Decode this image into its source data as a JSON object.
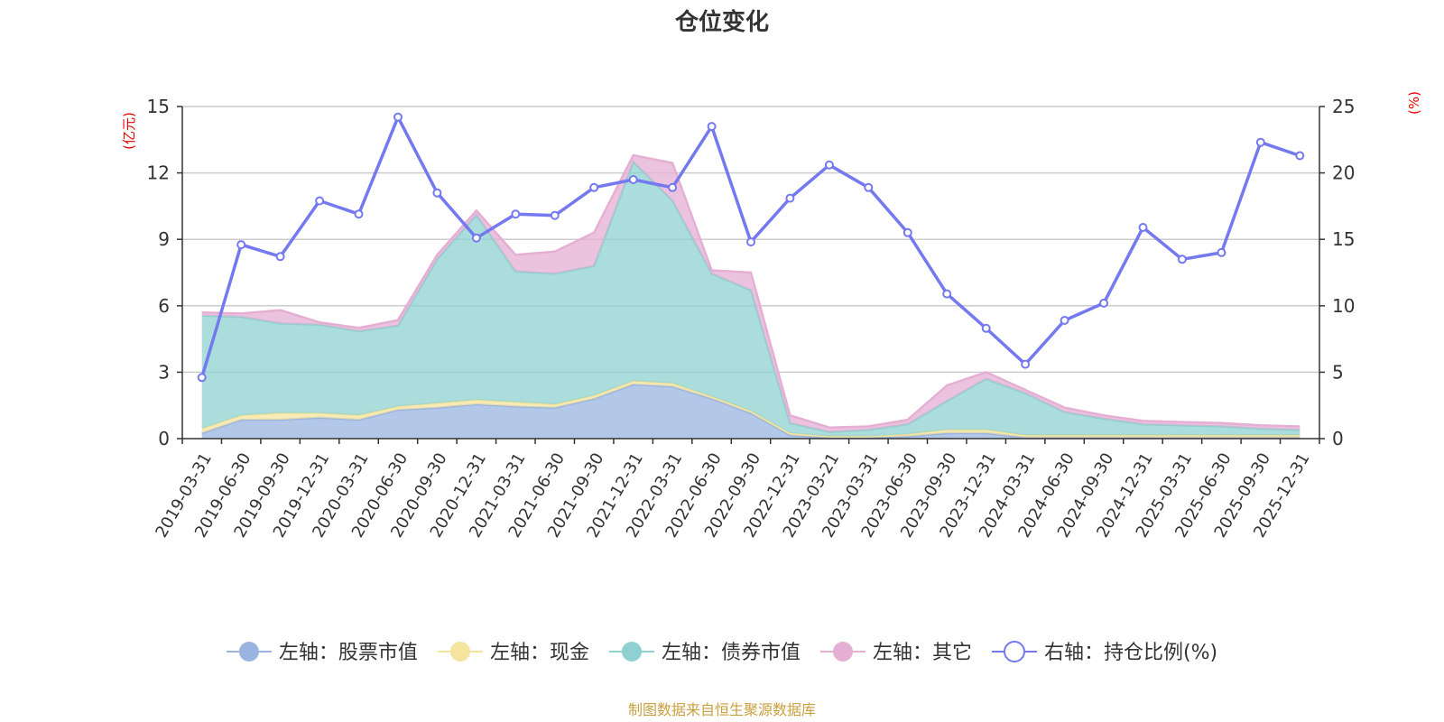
{
  "chart_data": {
    "type": "area",
    "title": "仓位变化",
    "left_unit": "(亿元)",
    "right_unit": "(%)",
    "left_ylim": [
      0,
      15
    ],
    "left_ticks": [
      "0",
      "3",
      "6",
      "9",
      "12",
      "15"
    ],
    "right_ylim": [
      0,
      25
    ],
    "right_ticks": [
      "0",
      "5",
      "10",
      "15",
      "20",
      "25"
    ],
    "categories": [
      "2019-03-31",
      "2019-06-30",
      "2019-09-30",
      "2019-12-31",
      "2020-03-31",
      "2020-06-30",
      "2020-09-30",
      "2020-12-31",
      "2021-03-31",
      "2021-06-30",
      "2021-09-30",
      "2021-12-31",
      "2022-03-31",
      "2022-06-30",
      "2022-09-30",
      "2022-12-31",
      "2023-03-21",
      "2023-03-31",
      "2023-06-30",
      "2023-09-30",
      "2023-12-31",
      "2024-03-31",
      "2024-06-30",
      "2024-09-30",
      "2024-12-31",
      "2025-03-31",
      "2025-06-30",
      "2025-09-30",
      "2025-12-31"
    ],
    "stacked_series": [
      {
        "name": "左轴：股票市值",
        "color": "#9ab4e0",
        "values": [
          0.25,
          0.85,
          0.85,
          0.95,
          0.85,
          1.3,
          1.4,
          1.55,
          1.45,
          1.4,
          1.8,
          2.45,
          2.35,
          1.8,
          1.15,
          0.15,
          0.05,
          0.05,
          0.1,
          0.25,
          0.25,
          0.05,
          0.05,
          0.05,
          0.05,
          0.05,
          0.05,
          0.05,
          0.05
        ]
      },
      {
        "name": "左轴：现金",
        "color": "#f5e49e",
        "values": [
          0.2,
          0.2,
          0.3,
          0.2,
          0.2,
          0.15,
          0.2,
          0.2,
          0.2,
          0.15,
          0.15,
          0.15,
          0.15,
          0.1,
          0.1,
          0.1,
          0.05,
          0.05,
          0.1,
          0.15,
          0.15,
          0.1,
          0.1,
          0.1,
          0.1,
          0.1,
          0.1,
          0.1,
          0.1
        ]
      },
      {
        "name": "左轴：债券市值",
        "color": "#8ed1d0",
        "values": [
          5.1,
          4.45,
          4.05,
          4.0,
          3.8,
          3.65,
          6.5,
          8.35,
          5.9,
          5.9,
          5.85,
          9.9,
          8.25,
          5.55,
          5.45,
          0.45,
          0.2,
          0.3,
          0.45,
          1.3,
          2.3,
          1.9,
          1.05,
          0.75,
          0.5,
          0.45,
          0.4,
          0.3,
          0.25
        ]
      },
      {
        "name": "左轴：其它",
        "color": "#e5afd4",
        "values": [
          0.15,
          0.15,
          0.6,
          0.1,
          0.15,
          0.25,
          0.2,
          0.2,
          0.75,
          1.0,
          1.5,
          0.3,
          1.7,
          0.15,
          0.8,
          0.35,
          0.2,
          0.15,
          0.2,
          0.7,
          0.3,
          0.15,
          0.2,
          0.15,
          0.15,
          0.15,
          0.15,
          0.15,
          0.15
        ]
      }
    ],
    "line_series": {
      "name": "右轴：持仓比例(%)",
      "color": "#7479ef",
      "values": [
        4.6,
        14.6,
        13.7,
        17.9,
        16.9,
        24.2,
        18.5,
        15.1,
        16.9,
        16.8,
        18.9,
        19.5,
        18.9,
        23.5,
        14.8,
        18.1,
        20.6,
        18.9,
        15.5,
        10.9,
        8.3,
        5.6,
        8.9,
        10.2,
        15.9,
        13.5,
        14.0,
        22.3,
        21.3
      ]
    },
    "legend": [
      {
        "label": "左轴：股票市值",
        "color": "#9ab4e0",
        "style": "filled"
      },
      {
        "label": "左轴：现金",
        "color": "#f5e49e",
        "style": "filled"
      },
      {
        "label": "左轴：债券市值",
        "color": "#8ed1d0",
        "style": "filled"
      },
      {
        "label": "左轴：其它",
        "color": "#e5afd4",
        "style": "filled"
      },
      {
        "label": "右轴：持仓比例(%)",
        "color": "#7479ef",
        "style": "hollow"
      }
    ],
    "legend_position": "bottom-center",
    "grid": true
  },
  "source": "制图数据来自恒生聚源数据库",
  "colors": {
    "axis_unit": "#ee0000",
    "source": "#c8a040",
    "grid": "#cccccc",
    "axis": "#333333"
  }
}
